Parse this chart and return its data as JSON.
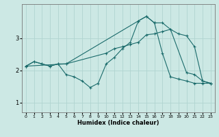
{
  "background_color": "#cce8e4",
  "grid_color": "#b0d4d0",
  "line_color": "#1a6b6b",
  "xlabel": "Humidex (Indice chaleur)",
  "xlim": [
    -0.5,
    23.5
  ],
  "ylim": [
    0.7,
    4.05
  ],
  "yticks": [
    1,
    2,
    3
  ],
  "xticks": [
    0,
    1,
    2,
    3,
    4,
    5,
    6,
    7,
    8,
    9,
    10,
    11,
    12,
    13,
    14,
    15,
    16,
    17,
    18,
    19,
    20,
    21,
    22,
    23
  ],
  "series1_x": [
    0,
    1,
    2,
    3,
    4,
    5,
    6,
    7,
    8,
    9,
    10,
    11,
    12,
    13,
    14,
    15,
    16,
    17,
    18,
    19,
    20,
    21,
    22,
    23
  ],
  "series1_y": [
    2.13,
    2.27,
    2.2,
    2.13,
    2.2,
    1.87,
    1.8,
    1.67,
    1.47,
    1.6,
    2.2,
    2.4,
    2.67,
    2.87,
    3.53,
    3.67,
    3.47,
    2.53,
    1.8,
    1.73,
    1.67,
    1.6,
    1.6,
    1.6
  ],
  "series2_x": [
    0,
    1,
    2,
    3,
    4,
    5,
    10,
    11,
    12,
    13,
    14,
    15,
    16,
    17,
    18,
    19,
    20,
    21,
    22,
    23
  ],
  "series2_y": [
    2.13,
    2.27,
    2.2,
    2.13,
    2.2,
    2.2,
    2.53,
    2.67,
    2.73,
    2.8,
    2.87,
    3.1,
    3.13,
    3.2,
    3.27,
    3.13,
    3.07,
    2.73,
    1.67,
    1.6
  ],
  "series3_x": [
    0,
    5,
    14,
    15,
    16,
    17,
    18,
    20,
    21,
    22,
    23
  ],
  "series3_y": [
    2.13,
    2.2,
    3.53,
    3.67,
    3.47,
    3.47,
    3.27,
    1.93,
    1.87,
    1.67,
    1.6
  ]
}
